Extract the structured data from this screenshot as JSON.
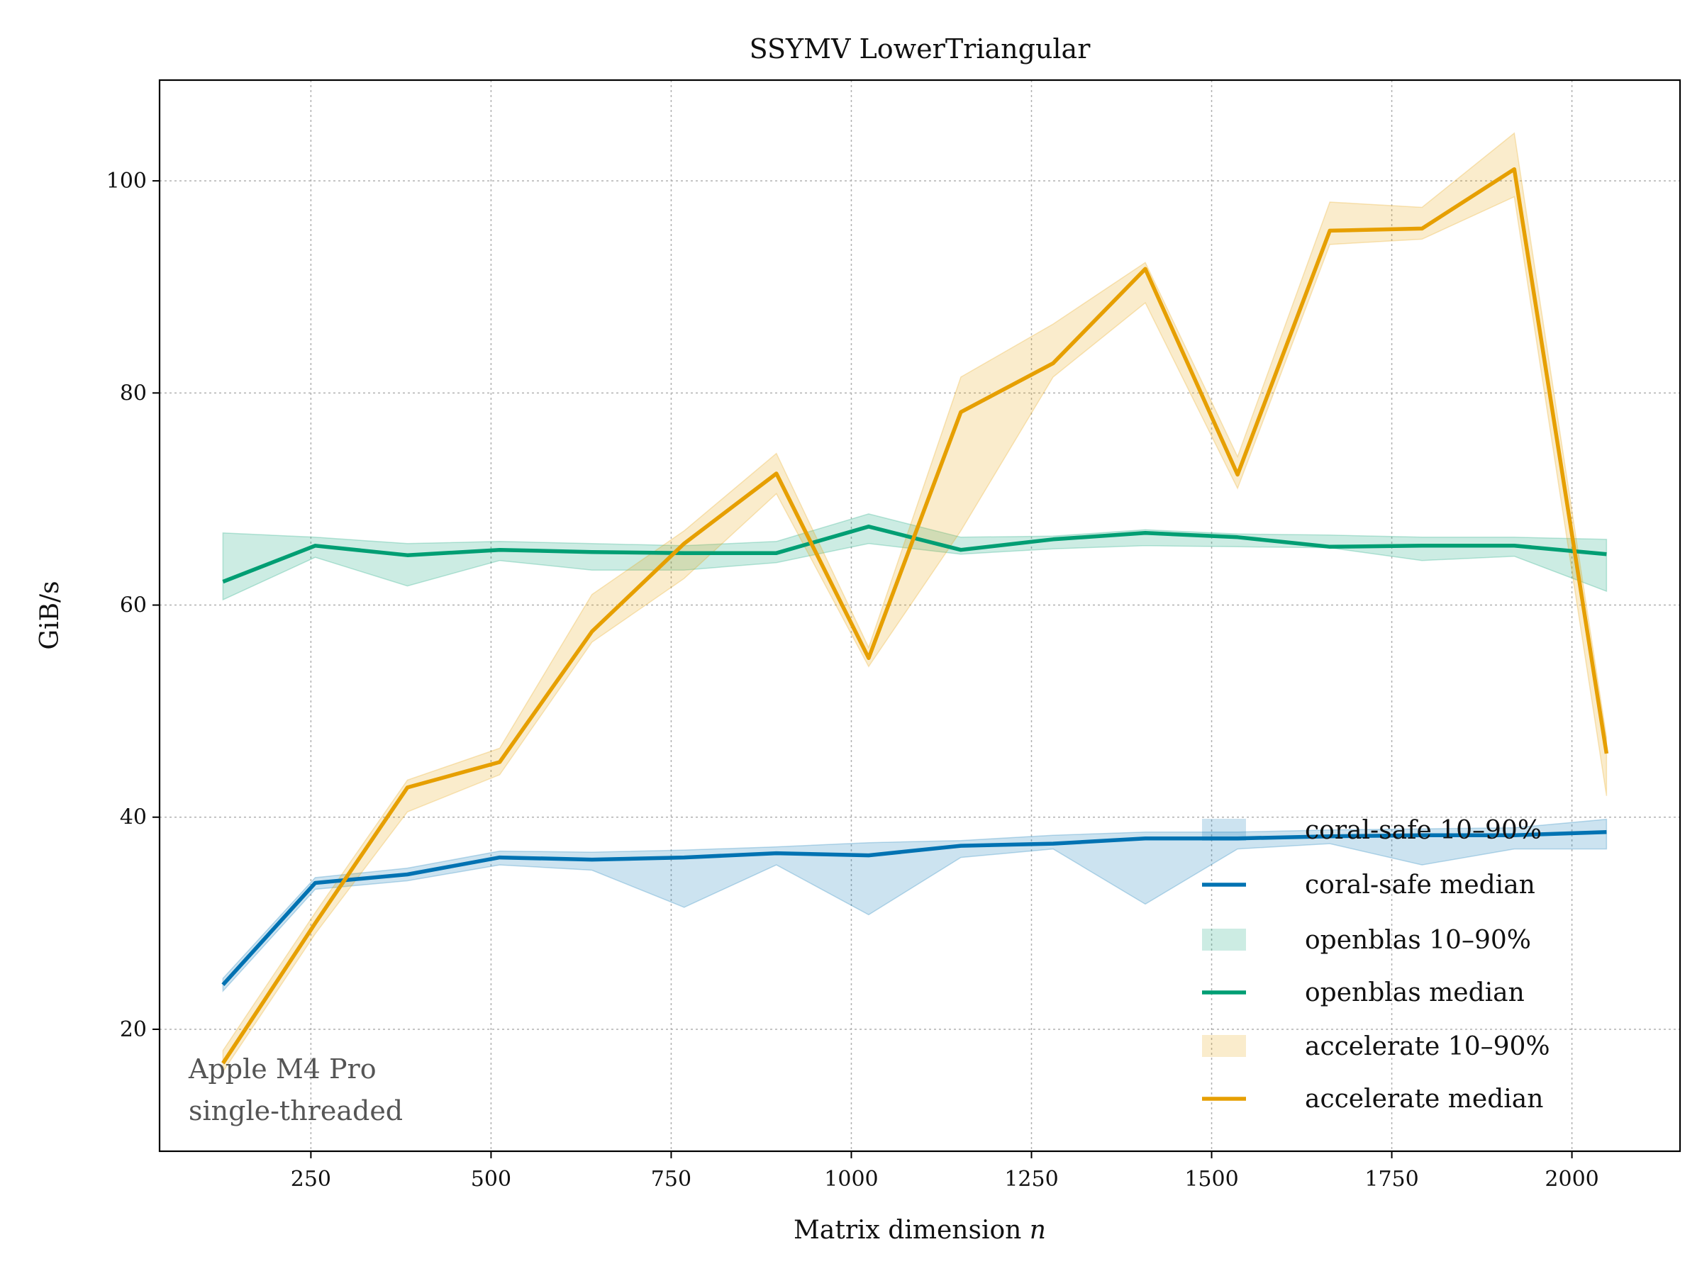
{
  "chart_data": {
    "type": "line",
    "title": "SSYMV LowerTriangular",
    "xlabel": "Matrix dimension",
    "xlabel_var": "n",
    "ylabel": "GiB/s",
    "xlim": [
      40,
      2150
    ],
    "ylim": [
      8.5,
      109.5
    ],
    "x_ticks": [
      250,
      500,
      750,
      1000,
      1250,
      1500,
      1750,
      2000
    ],
    "y_ticks": [
      20,
      40,
      60,
      80,
      100
    ],
    "grid": true,
    "legend_position": "lower-right",
    "x": [
      128,
      256,
      384,
      512,
      640,
      768,
      896,
      1024,
      1152,
      1280,
      1408,
      1536,
      1664,
      1792,
      1920,
      2048
    ],
    "series": [
      {
        "name": "coral-safe median",
        "band_name": "coral-safe 10–90%",
        "color": "#0072b2",
        "median": [
          24.2,
          33.8,
          34.6,
          36.2,
          36.0,
          36.2,
          36.6,
          36.4,
          37.3,
          37.5,
          38.0,
          38.0,
          38.2,
          38.3,
          38.3,
          38.6
        ],
        "p10": [
          23.6,
          33.2,
          34.0,
          35.5,
          35.0,
          31.5,
          35.5,
          30.8,
          36.2,
          37.0,
          31.8,
          37.0,
          37.5,
          35.5,
          37.0,
          37.0
        ],
        "p90": [
          24.8,
          34.3,
          35.2,
          36.8,
          36.7,
          36.9,
          37.2,
          37.6,
          37.8,
          38.3,
          38.6,
          38.6,
          38.8,
          38.9,
          39.0,
          39.8
        ]
      },
      {
        "name": "openblas median",
        "band_name": "openblas 10–90%",
        "color": "#009e73",
        "median": [
          62.2,
          65.6,
          64.7,
          65.2,
          65.0,
          64.9,
          64.9,
          67.4,
          65.2,
          66.2,
          66.8,
          66.4,
          65.5,
          65.6,
          65.6,
          64.8
        ],
        "p10": [
          60.5,
          64.5,
          61.8,
          64.2,
          63.3,
          63.3,
          64.0,
          65.8,
          64.8,
          65.3,
          65.6,
          65.5,
          65.4,
          64.2,
          64.6,
          61.3
        ],
        "p90": [
          66.8,
          66.4,
          65.8,
          66.0,
          65.8,
          65.6,
          66.0,
          68.6,
          66.4,
          66.5,
          67.1,
          66.7,
          66.6,
          66.4,
          66.4,
          66.2
        ]
      },
      {
        "name": "accelerate median",
        "band_name": "accelerate 10–90%",
        "color": "#e69f00",
        "median": [
          16.8,
          30.0,
          42.8,
          45.2,
          57.5,
          65.8,
          72.4,
          55.0,
          78.2,
          82.8,
          91.7,
          72.3,
          95.3,
          95.5,
          101.1,
          46.0
        ],
        "p10": [
          16.0,
          29.0,
          40.5,
          44.0,
          56.5,
          62.5,
          70.5,
          54.2,
          67.0,
          81.5,
          88.5,
          71.0,
          94.0,
          94.5,
          98.5,
          42.0
        ],
        "p90": [
          18.0,
          31.0,
          43.5,
          46.5,
          61.0,
          67.0,
          74.3,
          56.0,
          81.5,
          86.5,
          92.3,
          74.0,
          98.0,
          97.5,
          104.5,
          47.5
        ]
      }
    ],
    "annotation": [
      "Apple M4 Pro",
      "single-threaded"
    ]
  }
}
